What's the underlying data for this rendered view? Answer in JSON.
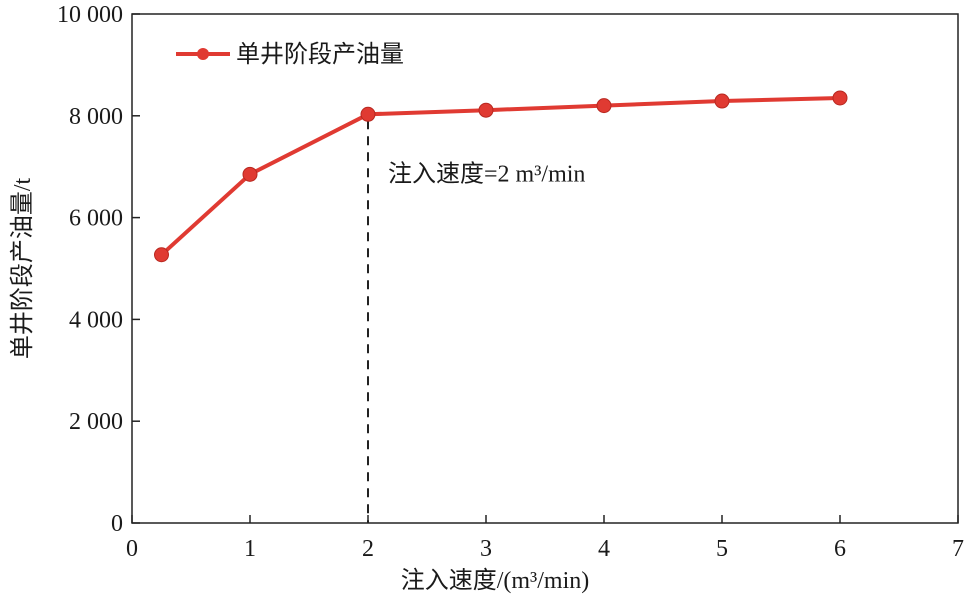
{
  "chart_data": {
    "type": "line",
    "xlabel": "注入速度/(m³/min)",
    "ylabel": "单井阶段产油量/t",
    "xlim": [
      0,
      7
    ],
    "ylim": [
      0,
      10000
    ],
    "x_ticks": [
      0,
      1,
      2,
      3,
      4,
      5,
      6,
      7
    ],
    "x_tick_labels": [
      "0",
      "1",
      "2",
      "3",
      "4",
      "5",
      "6",
      "7"
    ],
    "y_ticks": [
      0,
      2000,
      4000,
      6000,
      8000,
      10000
    ],
    "y_tick_labels": [
      "0",
      "2 000",
      "4 000",
      "6 000",
      "8 000",
      "10 000"
    ],
    "grid": false,
    "legend_position": "top-left",
    "series": [
      {
        "name": "单井阶段产油量",
        "color": "#e03a32",
        "marker": "circle",
        "x": [
          0.25,
          1,
          2,
          3,
          4,
          5,
          6
        ],
        "y": [
          5270,
          6850,
          8030,
          8110,
          8200,
          8290,
          8350
        ]
      }
    ],
    "annotation": {
      "text": "注入速度=2 m³/min",
      "x": 2,
      "line_style": "dashed"
    }
  }
}
